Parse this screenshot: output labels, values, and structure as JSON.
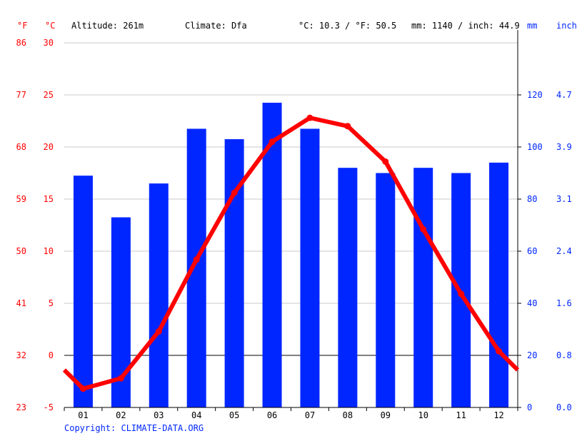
{
  "header": {
    "unit_f": "°F",
    "unit_c": "°C",
    "altitude": "Altitude: 261m",
    "climate": "Climate: Dfa",
    "temp_avg": "°C: 10.3 / °F: 50.5",
    "precip_total": "mm: 1140 / inch: 44.9",
    "unit_mm": "mm",
    "unit_inch": "inch"
  },
  "copyright": "Copyright: CLIMATE-DATA.ORG",
  "colors": {
    "temperature": "#ff0000",
    "precipitation": "#0026ff",
    "grid": "#c8c8c8"
  },
  "chart_data": {
    "type": "bar+line",
    "categories": [
      "01",
      "02",
      "03",
      "04",
      "05",
      "06",
      "07",
      "08",
      "09",
      "10",
      "11",
      "12"
    ],
    "series": [
      {
        "name": "mm",
        "type": "bar",
        "axis": "right",
        "values": [
          89,
          73,
          86,
          107,
          103,
          117,
          107,
          92,
          90,
          92,
          90,
          94
        ]
      },
      {
        "name": "°C",
        "type": "line",
        "axis": "left",
        "values": [
          -3.2,
          -2.2,
          2.3,
          9.2,
          15.6,
          20.5,
          22.8,
          22.0,
          18.6,
          12.1,
          5.9,
          0.4
        ]
      }
    ],
    "left_axis_c": {
      "range": [
        -5,
        30
      ],
      "ticks": [
        "-5",
        "0",
        "5",
        "10",
        "15",
        "20",
        "25",
        "30"
      ]
    },
    "left_axis_f": {
      "ticks": [
        "23",
        "32",
        "41",
        "50",
        "59",
        "68",
        "77",
        "86"
      ]
    },
    "right_axis_mm": {
      "range": [
        0,
        140
      ],
      "ticks": [
        "0",
        "20",
        "40",
        "60",
        "80",
        "100",
        "120"
      ]
    },
    "right_axis_inch": {
      "ticks": [
        "0.0",
        "0.8",
        "1.6",
        "2.4",
        "3.1",
        "3.9",
        "4.7"
      ]
    },
    "grid": true
  }
}
